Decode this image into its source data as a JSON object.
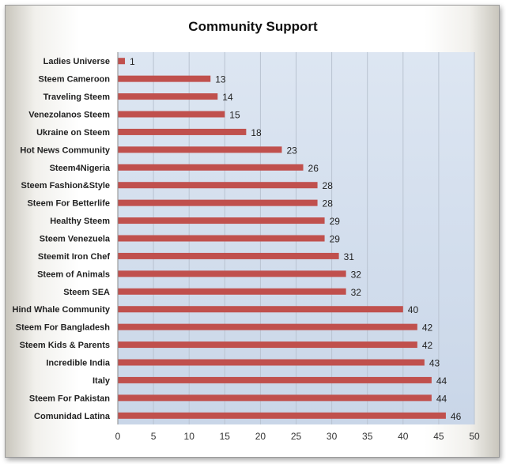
{
  "chart_data": {
    "type": "bar",
    "orientation": "horizontal",
    "title": "Community Support",
    "xlabel": "",
    "ylabel": "",
    "xlim": [
      0,
      50
    ],
    "x_ticks": [
      0,
      5,
      10,
      15,
      20,
      25,
      30,
      35,
      40,
      45,
      50
    ],
    "grid": "vertical",
    "legend": "none",
    "data_labels": true,
    "bar_color": "#c0504d",
    "categories": [
      "Ladies Universe",
      "Steem Cameroon",
      "Traveling Steem",
      "Venezolanos Steem",
      "Ukraine on Steem",
      "Hot News Community",
      "Steem4Nigeria",
      "Steem Fashion&Style",
      "Steem For Betterlife",
      "Healthy Steem",
      "Steem Venezuela",
      "Steemit Iron Chef",
      "Steem of Animals",
      "Steem SEA",
      "Hind Whale Community",
      "Steem For Bangladesh",
      "Steem Kids & Parents",
      "Incredible India",
      "Italy",
      "Steem For Pakistan",
      "Comunidad Latina"
    ],
    "values": [
      1,
      13,
      14,
      15,
      18,
      23,
      26,
      28,
      28,
      29,
      29,
      31,
      32,
      32,
      40,
      42,
      42,
      43,
      44,
      44,
      46
    ]
  }
}
